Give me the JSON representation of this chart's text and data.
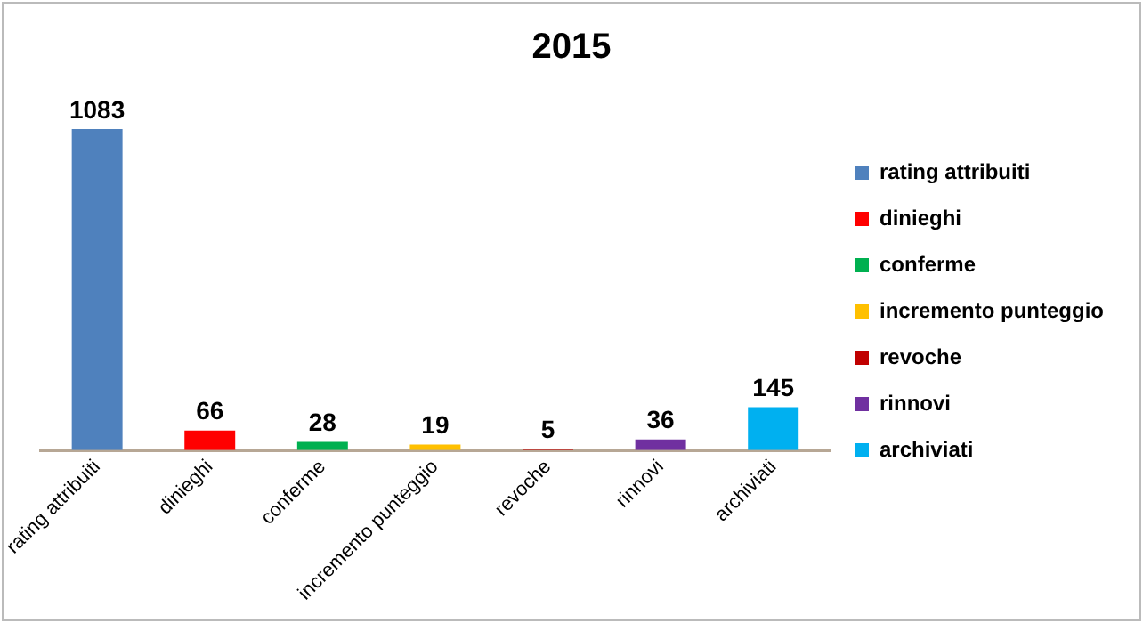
{
  "chart_data": {
    "type": "bar",
    "title": "2015",
    "categories": [
      "rating attribuiti",
      "dinieghi",
      "conferme",
      "incremento punteggio",
      "revoche",
      "rinnovi",
      "archiviati"
    ],
    "series": [
      {
        "name": "rating attribuiti",
        "color": "#4f81bd",
        "values": [
          1083,
          null,
          null,
          null,
          null,
          null,
          null
        ]
      },
      {
        "name": "dinieghi",
        "color": "#ff0000",
        "values": [
          null,
          66,
          null,
          null,
          null,
          null,
          null
        ]
      },
      {
        "name": "conferme",
        "color": "#00b050",
        "values": [
          null,
          null,
          28,
          null,
          null,
          null,
          null
        ]
      },
      {
        "name": "incremento punteggio",
        "color": "#ffc000",
        "values": [
          null,
          null,
          null,
          19,
          null,
          null,
          null
        ]
      },
      {
        "name": "revoche",
        "color": "#c00000",
        "values": [
          null,
          null,
          null,
          null,
          5,
          null,
          null
        ]
      },
      {
        "name": "rinnovi",
        "color": "#7030a0",
        "values": [
          null,
          null,
          null,
          null,
          null,
          36,
          null
        ]
      },
      {
        "name": "archiviati",
        "color": "#00b0f0",
        "values": [
          null,
          null,
          null,
          null,
          null,
          null,
          145
        ]
      }
    ],
    "data_labels": true,
    "legend": "right",
    "tick_labels": "x"
  }
}
